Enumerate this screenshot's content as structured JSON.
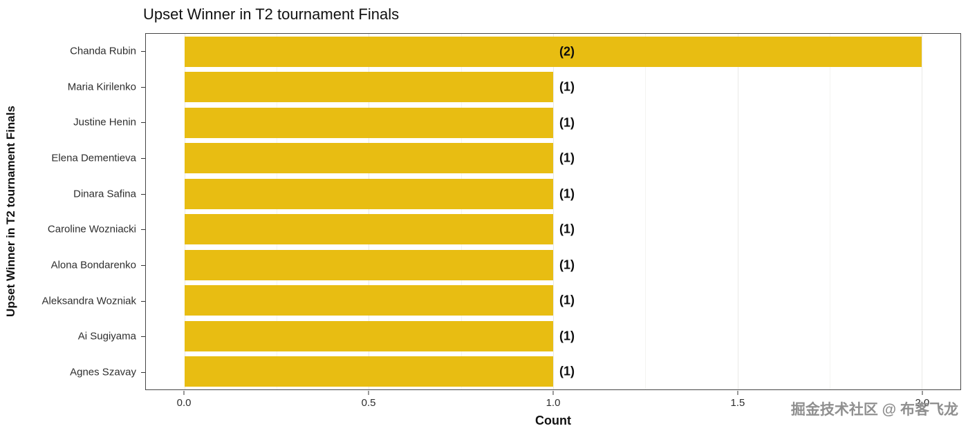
{
  "chart_data": {
    "type": "bar",
    "orientation": "horizontal",
    "title": "Upset Winner in T2 tournament Finals",
    "xlabel": "Count",
    "ylabel": "Upset Winner in T2 tournament Finals",
    "categories": [
      "Chanda Rubin",
      "Maria Kirilenko",
      "Justine Henin",
      "Elena Dementieva",
      "Dinara Safina",
      "Caroline Wozniacki",
      "Alona Bondarenko",
      "Aleksandra Wozniak",
      "Ai Sugiyama",
      "Agnes Szavay"
    ],
    "values": [
      2,
      1,
      1,
      1,
      1,
      1,
      1,
      1,
      1,
      1
    ],
    "bar_labels": [
      "(2)",
      "(1)",
      "(1)",
      "(1)",
      "(1)",
      "(1)",
      "(1)",
      "(1)",
      "(1)",
      "(1)"
    ],
    "xlim": [
      0,
      2
    ],
    "x_ticks": [
      0,
      0.5,
      1,
      1.5,
      2
    ],
    "x_tick_labels": [
      "0.0",
      "0.5",
      "1.0",
      "1.5",
      "2.0"
    ],
    "bar_color": "#e8bd12",
    "grid": true,
    "legend": "none"
  },
  "watermark": "掘金技术社区 @ 布客飞龙"
}
